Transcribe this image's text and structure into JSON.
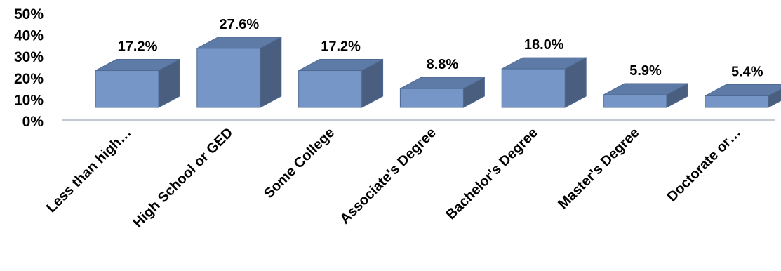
{
  "chart_data": {
    "type": "bar",
    "style": "3d-column",
    "categories": [
      "Less than high…",
      "High School or GED",
      "Some College",
      "Associate's Degree",
      "Bachelor's Degree",
      "Master's Degree",
      "Doctorate or…"
    ],
    "values": [
      17.2,
      27.6,
      17.2,
      8.8,
      18.0,
      5.9,
      5.4
    ],
    "data_labels": [
      "17.2%",
      "27.6%",
      "17.2%",
      "8.8%",
      "18.0%",
      "5.9%",
      "5.4%"
    ],
    "y_ticks": [
      "0%",
      "10%",
      "20%",
      "30%",
      "40%",
      "50%"
    ],
    "ylim": [
      0,
      50
    ],
    "grid": false,
    "legend": "none",
    "colors": {
      "front": "#7696c8",
      "top": "#5e7aa6",
      "side": "#4a5e7f",
      "edge": "#4f6a93"
    }
  }
}
